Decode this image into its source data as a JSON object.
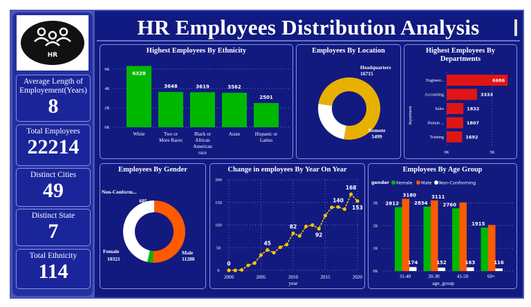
{
  "header": {
    "title": "HR Employees Distribution Analysis",
    "logo_text": "HR"
  },
  "kpis": [
    {
      "label": "Average Length of Employement(Years)",
      "value": "8"
    },
    {
      "label": "Total Employees",
      "value": "22214"
    },
    {
      "label": "Distinct Cities",
      "value": "49"
    },
    {
      "label": "Distinct State",
      "value": "7"
    },
    {
      "label": "Total Ethnicity",
      "value": "114"
    }
  ],
  "colors": {
    "green": "#00b800",
    "orange": "#ff5a00",
    "red": "#e01515",
    "gold": "#e8b000",
    "yellow": "#f5c400",
    "bg": "#121a80"
  },
  "chart_data": [
    {
      "id": "ethnicity",
      "type": "bar",
      "title": "Highest Employees By Ethnicity",
      "categories": [
        "White",
        "Two or More Races",
        "Black or African American race",
        "Asian",
        "Hispanic or Latino"
      ],
      "cat_lines": [
        [
          "White"
        ],
        [
          "Two or",
          "More Races"
        ],
        [
          "Black or",
          "African",
          "American",
          "race"
        ],
        [
          "Asian"
        ],
        [
          "Hispanic or",
          "Latino"
        ]
      ],
      "values": [
        6328,
        3648,
        3619,
        3562,
        2501
      ],
      "ylim": [
        0,
        6500
      ],
      "yticks": [
        0,
        2000,
        4000,
        6000
      ],
      "ytick_labels": [
        "0K",
        "2K",
        "4K",
        "6K"
      ]
    },
    {
      "id": "location",
      "type": "pie",
      "title": "Employees By Location",
      "labels": [
        "Headquarters",
        "Remote"
      ],
      "values": [
        16715,
        5499
      ]
    },
    {
      "id": "departments",
      "type": "bar",
      "orientation": "horizontal",
      "title": "Highest Employees By Departments",
      "ylabel": "department",
      "categories": [
        "Engineer...",
        "Accounting",
        "Sales",
        "Human ...",
        "Training"
      ],
      "values": [
        6686,
        3333,
        1832,
        1807,
        1692
      ],
      "xticks": [
        0,
        5000
      ],
      "xtick_labels": [
        "0K",
        "5K"
      ]
    },
    {
      "id": "gender",
      "type": "pie",
      "title": "Employees By Gender",
      "labels": [
        "Male",
        "Non-Conform...",
        "Female"
      ],
      "values": [
        11288,
        605,
        10321
      ]
    },
    {
      "id": "year",
      "type": "line",
      "title": "Change in employees By Year On Year",
      "xlabel": "year",
      "x": [
        2000,
        2001,
        2002,
        2003,
        2004,
        2005,
        2006,
        2007,
        2008,
        2009,
        2010,
        2011,
        2012,
        2013,
        2014,
        2015,
        2016,
        2017,
        2018,
        2019,
        2020
      ],
      "values": [
        0,
        0,
        1,
        11,
        16,
        34,
        45,
        39,
        51,
        57,
        82,
        76,
        97,
        100,
        92,
        121,
        139,
        140,
        135,
        168,
        153
      ],
      "labeled": {
        "2000": "0",
        "2006": "45",
        "2010": "82",
        "2014": "92",
        "2017": "140",
        "2019": "168",
        "2020": "153"
      },
      "ylim": [
        0,
        200
      ],
      "yticks": [
        0,
        50,
        100,
        150,
        200
      ],
      "xticks": [
        2000,
        2005,
        2010,
        2015,
        2020
      ]
    },
    {
      "id": "age",
      "type": "bar",
      "title": "Employees By Age Group",
      "legend_title": "gender",
      "xlabel": "age_group",
      "categories": [
        "31-40",
        "20-30",
        "41-50",
        "60+"
      ],
      "series": [
        {
          "name": "Female",
          "values": [
            2812,
            2834,
            2760,
            1915
          ],
          "labels": [
            "2812",
            "2834",
            "2760",
            "1915"
          ]
        },
        {
          "name": "Male",
          "values": [
            3180,
            3111,
            3020,
            2030
          ],
          "labels": [
            "3180",
            "3111",
            "",
            ""
          ]
        },
        {
          "name": "Non-Conforming",
          "values": [
            174,
            152,
            163,
            116
          ],
          "labels": [
            "174",
            "152",
            "163",
            "116"
          ]
        }
      ],
      "ylim": [
        0,
        3500
      ],
      "yticks": [
        0,
        1000,
        2000,
        3000
      ],
      "ytick_labels": [
        "0K",
        "1K",
        "2K",
        "3K"
      ]
    }
  ]
}
